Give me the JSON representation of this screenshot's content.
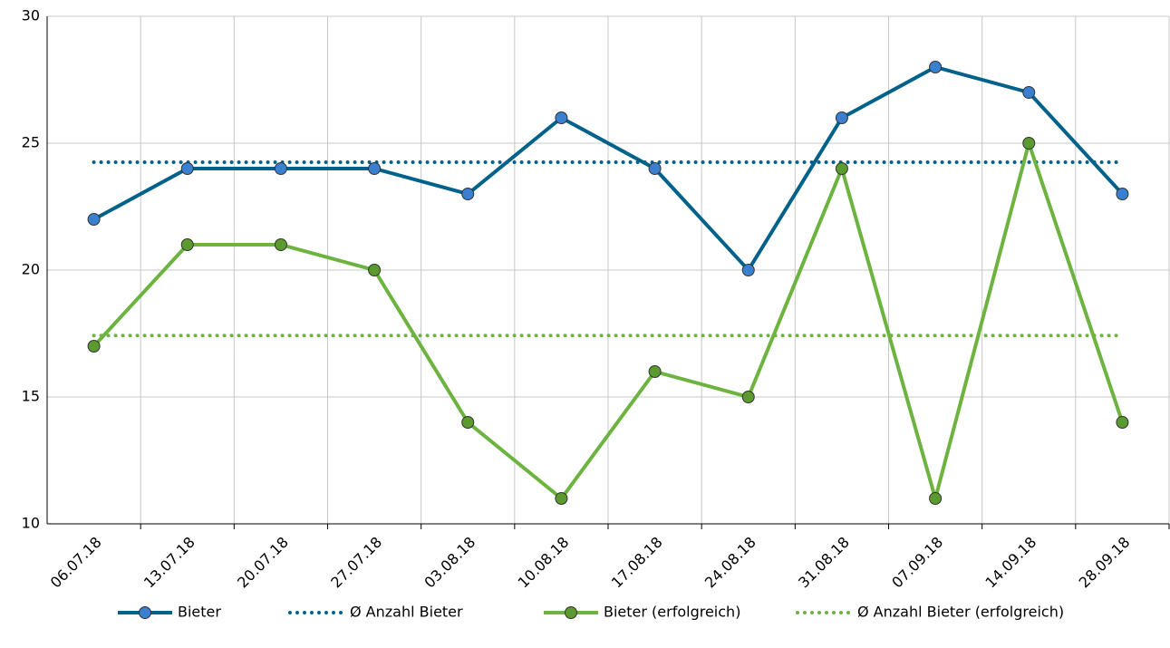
{
  "chart_data": {
    "type": "line",
    "categories": [
      "06.07.18",
      "13.07.18",
      "20.07.18",
      "27.07.18",
      "03.08.18",
      "10.08.18",
      "17.08.18",
      "24.08.18",
      "31.08.18",
      "07.09.18",
      "14.09.18",
      "28.09.18"
    ],
    "series": [
      {
        "name": "Bieter",
        "color": "#00628a",
        "marker_color": "#3a7fd0",
        "style": "solid",
        "markers": true,
        "values": [
          22,
          24,
          24,
          24,
          23,
          26,
          24,
          20,
          26,
          28,
          27,
          23
        ]
      },
      {
        "name": "Ø Anzahl Bieter",
        "color": "#00628a",
        "style": "dotted",
        "markers": false,
        "values": [
          24.25,
          24.25,
          24.25,
          24.25,
          24.25,
          24.25,
          24.25,
          24.25,
          24.25,
          24.25,
          24.25,
          24.25
        ]
      },
      {
        "name": "Bieter (erfolgreich)",
        "color": "#6cb33f",
        "marker_color": "#5a9a2e",
        "style": "solid",
        "markers": true,
        "values": [
          17,
          21,
          21,
          20,
          14,
          11,
          16,
          15,
          24,
          11,
          25,
          14
        ]
      },
      {
        "name": "Ø Anzahl Bieter (erfolgreich)",
        "color": "#6cb33f",
        "style": "dotted",
        "markers": false,
        "values": [
          17.42,
          17.42,
          17.42,
          17.42,
          17.42,
          17.42,
          17.42,
          17.42,
          17.42,
          17.42,
          17.42,
          17.42
        ]
      }
    ],
    "ylim": [
      10,
      30
    ],
    "yticks": [
      10,
      15,
      20,
      25,
      30
    ],
    "grid": true,
    "legend": "bottom"
  }
}
